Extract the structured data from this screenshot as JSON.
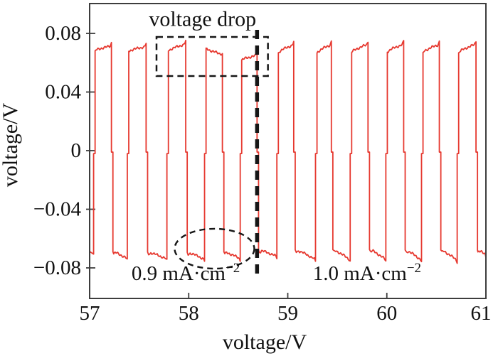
{
  "figure": {
    "background": "#ffffff",
    "frame_color": "#3d3d3d",
    "text_color": "#111111",
    "annotation_color": "#161616"
  },
  "chart_data": {
    "type": "line",
    "title": "",
    "xlabel": "voltage/V",
    "ylabel": "voltage/V",
    "xlim": [
      57,
      61
    ],
    "ylim": [
      -0.101,
      0.1
    ],
    "grid": false,
    "legend": null,
    "x_ticks": [
      57,
      58,
      59,
      60,
      61
    ],
    "x_tick_labels": [
      "57",
      "58",
      "59",
      "60",
      "61"
    ],
    "y_ticks": [
      0.08,
      0.04,
      0,
      -0.04,
      -0.08
    ],
    "y_tick_labels": [
      "0.08",
      "0.04",
      "0",
      "−0.04",
      "−0.08"
    ],
    "line_color": "#e6382f",
    "lead_in": {
      "x_start": 57.0,
      "level": [
        -0.0688,
        -0.0706
      ]
    },
    "transition_step": {
      "level": -0.002,
      "width": 0.015
    },
    "pulses": [
      {
        "rise": 57.04,
        "fall": 57.22,
        "v_high": [
          0.0682,
          0.0714
        ],
        "peak": true,
        "v_low": [
          -0.069,
          -0.0737
        ],
        "low_end": 57.38
      },
      {
        "rise": 57.38,
        "fall": 57.57,
        "v_high": [
          0.0678,
          0.071
        ],
        "peak": true,
        "v_low": [
          -0.0692,
          -0.074
        ],
        "low_end": 57.78
      },
      {
        "rise": 57.78,
        "fall": 57.97,
        "v_high": [
          0.068,
          0.0727
        ],
        "peak": true,
        "v_low": [
          -0.0694,
          -0.0742
        ],
        "low_end": 58.16
      },
      {
        "rise": 58.16,
        "fall": 58.34,
        "v_high": [
          0.07,
          0.0658
        ],
        "peak": false,
        "v_low": [
          -0.069,
          -0.0738
        ],
        "low_end": 58.52
      },
      {
        "rise": 58.52,
        "fall": 58.69,
        "v_high": [
          0.0618,
          0.065
        ],
        "peak": true,
        "v_low": [
          -0.0678,
          -0.0722
        ],
        "low_end": 58.89
      },
      {
        "rise": 58.89,
        "fall": 59.06,
        "v_high": [
          0.0668,
          0.0722
        ],
        "peak": true,
        "v_low": [
          -0.0676,
          -0.0744
        ],
        "low_end": 59.28
      },
      {
        "rise": 59.28,
        "fall": 59.44,
        "v_high": [
          0.0666,
          0.0724
        ],
        "peak": true,
        "v_low": [
          -0.0676,
          -0.0746
        ],
        "low_end": 59.63
      },
      {
        "rise": 59.63,
        "fall": 59.81,
        "v_high": [
          0.067,
          0.0725
        ],
        "peak": true,
        "v_low": [
          -0.0675,
          -0.0745
        ],
        "low_end": 59.99
      },
      {
        "rise": 59.99,
        "fall": 60.17,
        "v_high": [
          0.0672,
          0.0726
        ],
        "peak": true,
        "v_low": [
          -0.0678,
          -0.0748
        ],
        "low_end": 60.35
      },
      {
        "rise": 60.35,
        "fall": 60.53,
        "v_high": [
          0.067,
          0.0724
        ],
        "peak": true,
        "v_low": [
          -0.0678,
          -0.075
        ],
        "low_end": 60.71
      },
      {
        "rise": 60.71,
        "fall": 60.9,
        "v_high": [
          0.0668,
          0.0726
        ],
        "peak": true,
        "v_low": [
          -0.068,
          -0.0712
        ],
        "low_end": 61.0
      }
    ],
    "annotations": {
      "voltage_drop_label": {
        "text": "voltage drop",
        "x": 58.14,
        "y": 0.0897
      },
      "voltage_drop_box": {
        "x1": 57.675,
        "x2": 58.8,
        "y1": 0.0776,
        "y2": 0.0509
      },
      "current_switch_line": {
        "x": 58.69,
        "y_top": 0.0824,
        "y_bottom": -0.0873
      },
      "dip_ellipse": {
        "cx": 58.26,
        "cy": -0.0669,
        "rx": 0.402,
        "ry": 0.0136
      },
      "current_label_left": {
        "base": "0.9 mA·cm",
        "sup": "−2",
        "x": 57.97,
        "y": -0.0883
      },
      "current_label_right": {
        "base": "1.0 mA·cm",
        "sup": "−2",
        "x": 59.8,
        "y": -0.0883
      }
    }
  }
}
